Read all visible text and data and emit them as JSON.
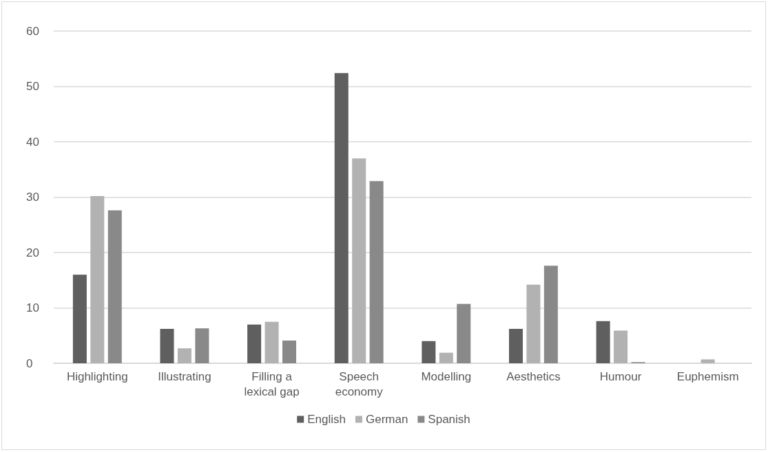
{
  "chart_data": {
    "type": "bar",
    "categories": [
      "Highlighting",
      "Illustrating",
      "Filling a lexical gap",
      "Speech economy",
      "Modelling",
      "Aesthetics",
      "Humour",
      "Euphemism"
    ],
    "series": [
      {
        "name": "English",
        "color": "#5f5f5f",
        "values": [
          16.0,
          6.2,
          7.0,
          52.4,
          4.0,
          6.2,
          7.6,
          0
        ]
      },
      {
        "name": "German",
        "color": "#b2b2b2",
        "values": [
          30.2,
          2.7,
          7.5,
          37.0,
          1.9,
          14.2,
          5.9,
          0.7
        ]
      },
      {
        "name": "Spanish",
        "color": "#898989",
        "values": [
          27.6,
          6.3,
          4.1,
          32.9,
          10.7,
          17.6,
          0.2,
          0
        ]
      }
    ],
    "ylim": [
      0,
      60
    ],
    "yticks": [
      0,
      10,
      20,
      30,
      40,
      50,
      60
    ],
    "grid": "y",
    "legend": "bottom"
  }
}
